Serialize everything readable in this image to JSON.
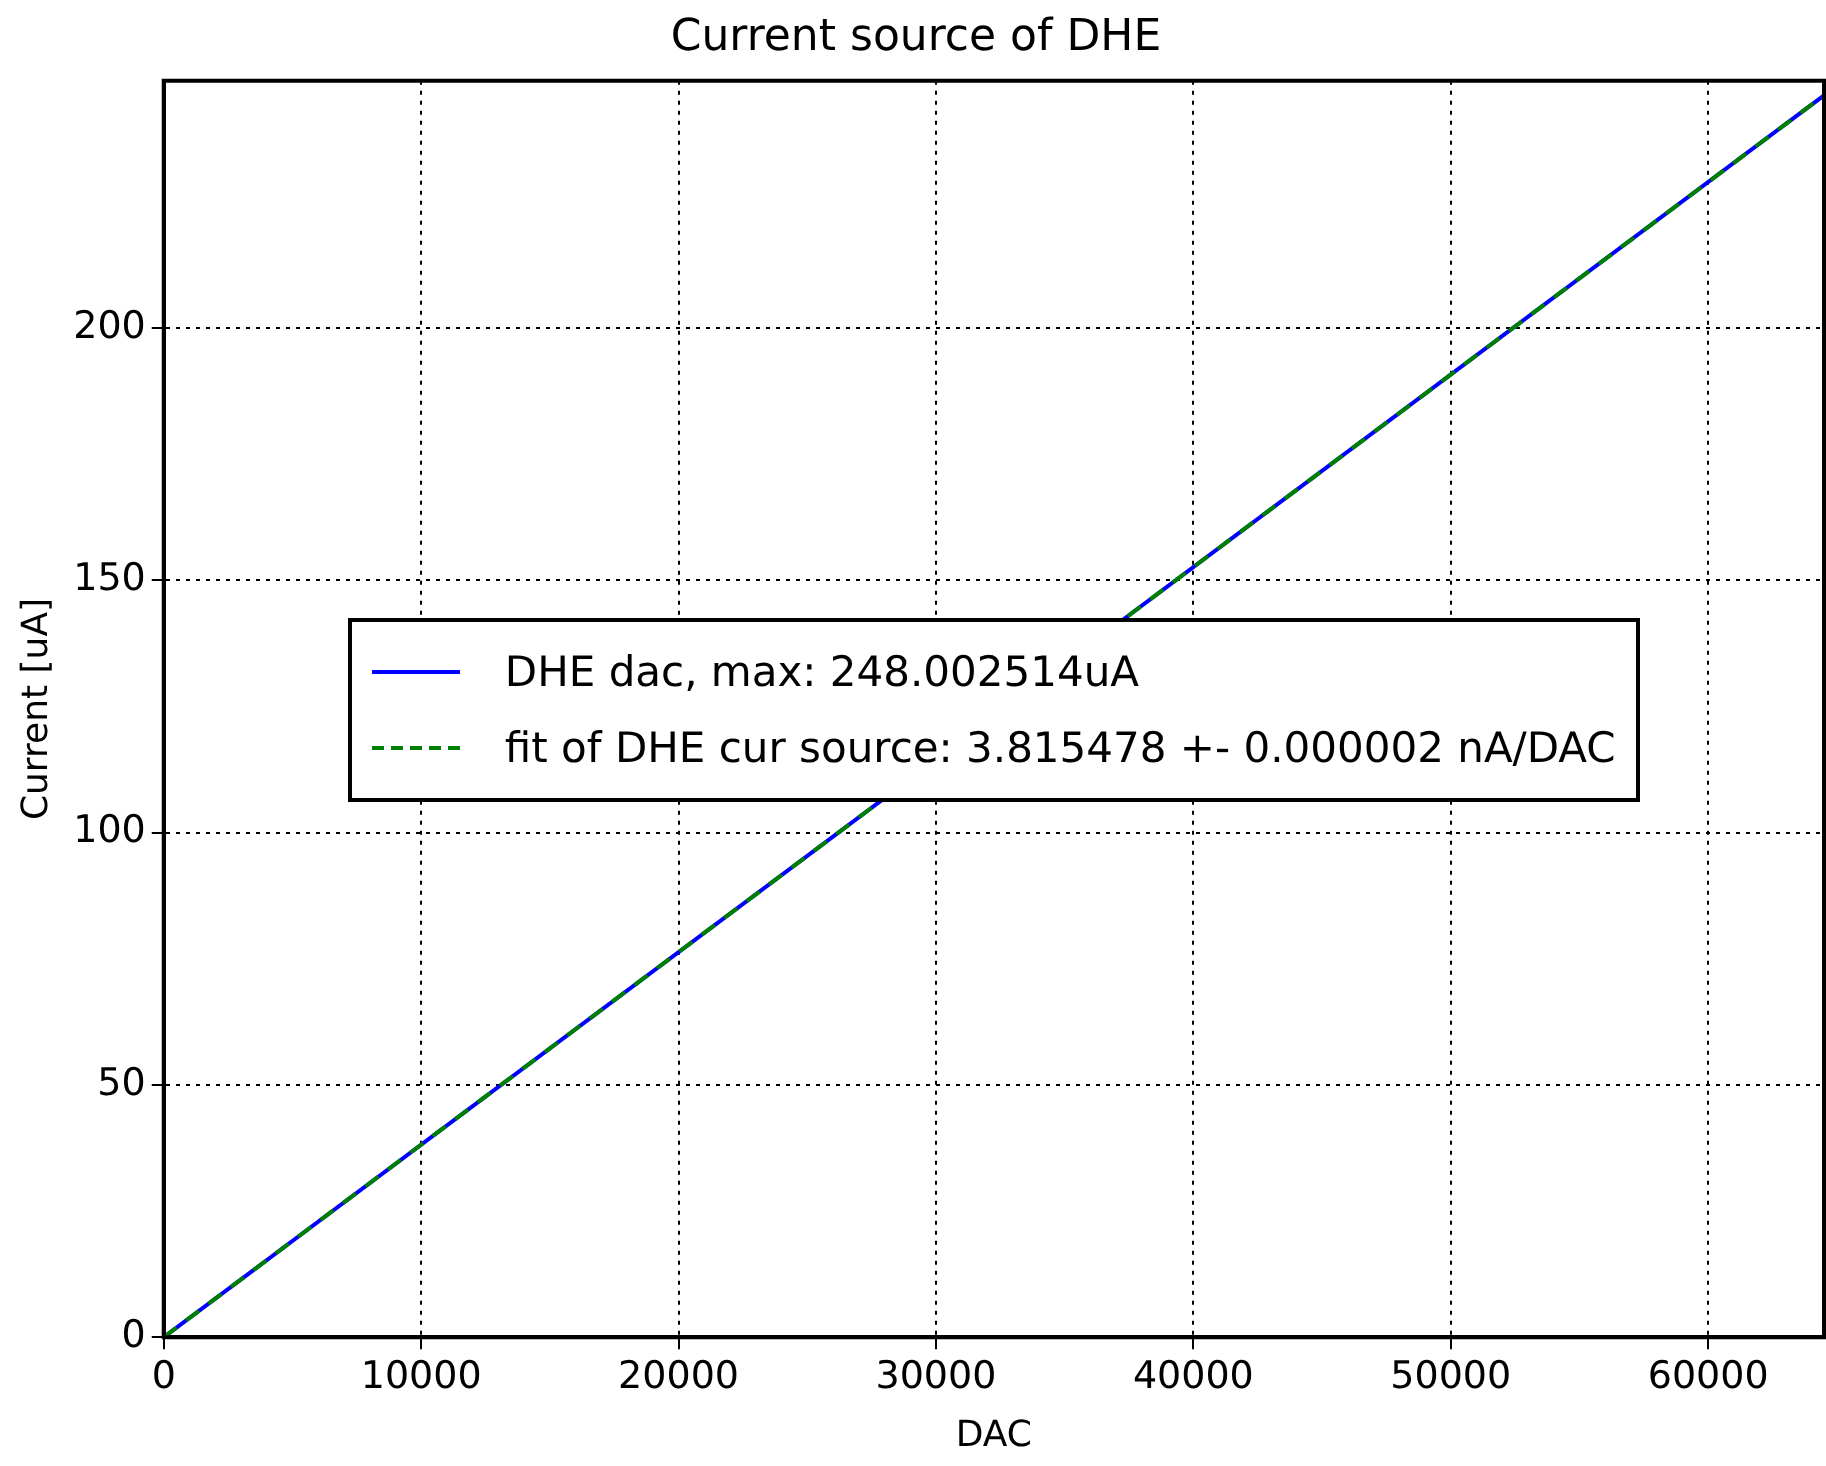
{
  "chart_data": {
    "type": "line",
    "title": "Current source of DHE",
    "xlabel": "DAC",
    "ylabel": "Current [uA]",
    "xlim": [
      0,
      64500
    ],
    "ylim": [
      0,
      249
    ],
    "xticks": [
      0,
      10000,
      20000,
      30000,
      40000,
      50000,
      60000
    ],
    "yticks": [
      0,
      50,
      100,
      150,
      200
    ],
    "grid": true,
    "legend": "center",
    "marker": "none",
    "x": [
      0,
      64500
    ],
    "series": [
      {
        "name": "DHE dac, max: 248.002514uA",
        "color": "#0000ff",
        "values": [
          0,
          246.1
        ],
        "line_style": "solid"
      },
      {
        "name": "fit of DHE cur source: 3.815478 +- 0.000002 nA/DAC",
        "color": "#008000",
        "values": [
          0,
          246.1
        ],
        "line_style": "dashed"
      }
    ]
  }
}
